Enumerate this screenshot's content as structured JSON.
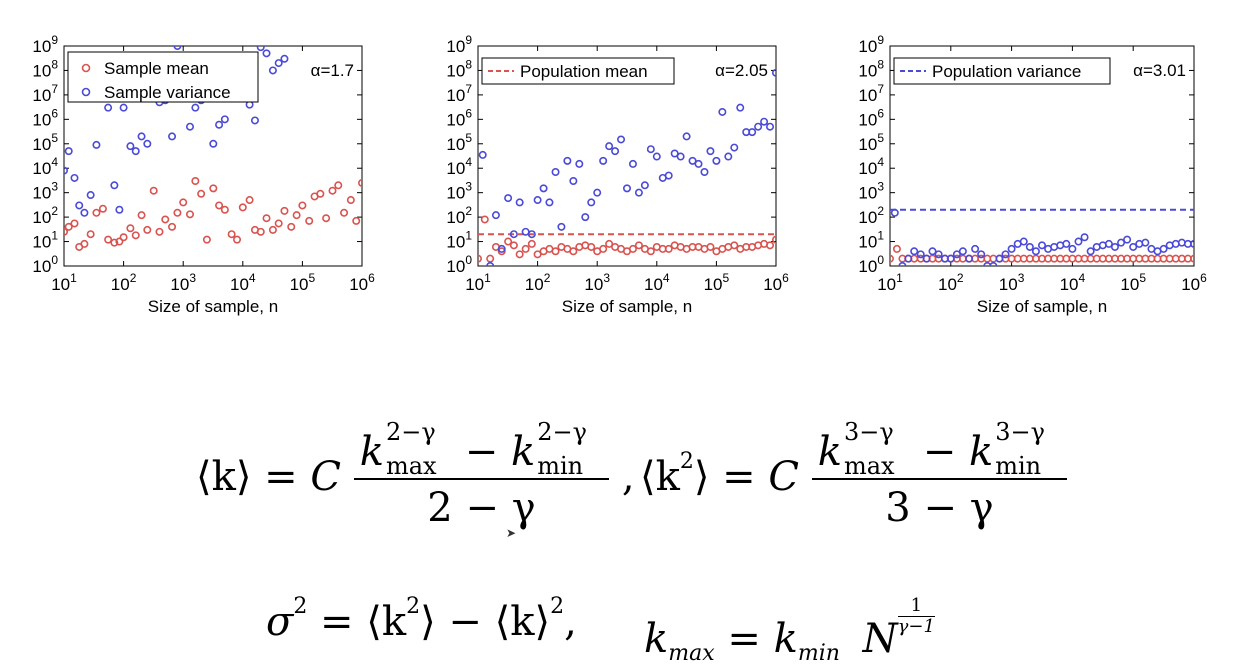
{
  "chart_data": [
    {
      "type": "scatter",
      "xlabel": "Size of sample, n",
      "xscale": "log",
      "yscale": "log",
      "xlim": [
        10,
        1000000
      ],
      "ylim": [
        1,
        1000000000
      ],
      "x_ticks": [
        "10^1",
        "10^2",
        "10^3",
        "10^4",
        "10^5",
        "10^6"
      ],
      "y_ticks": [
        "10^0",
        "10^1",
        "10^2",
        "10^3",
        "10^4",
        "10^5",
        "10^6",
        "10^7",
        "10^8",
        "10^9"
      ],
      "annotation": "α=1.7",
      "legend_position": "top-left",
      "series": [
        {
          "name": "Sample mean",
          "color": "#d9534f",
          "marker": "circle",
          "x": [
            10,
            12,
            15,
            18,
            22,
            28,
            35,
            45,
            55,
            70,
            85,
            100,
            130,
            160,
            200,
            250,
            320,
            400,
            500,
            650,
            800,
            1000,
            1300,
            1600,
            2000,
            2500,
            3200,
            4000,
            5000,
            6500,
            8000,
            10000,
            13000,
            16000,
            20000,
            25000,
            32000,
            40000,
            50000,
            65000,
            80000,
            100000,
            130000,
            160000,
            200000,
            250000,
            320000,
            400000,
            500000,
            650000,
            800000,
            1000000
          ],
          "y": [
            25,
            40,
            55,
            6,
            8,
            20,
            150,
            220,
            12,
            9,
            10,
            15,
            35,
            18,
            120,
            30,
            1200,
            25,
            80,
            40,
            150,
            400,
            130,
            3000,
            900,
            12,
            1500,
            300,
            200,
            20,
            12,
            250,
            500,
            30,
            25,
            90,
            30,
            55,
            180,
            40,
            120,
            300,
            70,
            700,
            900,
            90,
            1200,
            2000,
            150,
            500,
            70,
            2500
          ]
        },
        {
          "name": "Sample variance",
          "color": "#4a4ad9",
          "marker": "circle",
          "x": [
            10,
            12,
            15,
            18,
            22,
            28,
            35,
            45,
            55,
            70,
            85,
            100,
            130,
            160,
            200,
            250,
            320,
            400,
            500,
            650,
            800,
            1000,
            1300,
            1600,
            2000,
            2500,
            3200,
            4000,
            5000,
            6500,
            8000,
            10000,
            13000,
            16000,
            20000,
            25000,
            32000,
            40000,
            50000
          ],
          "y": [
            8000,
            50000,
            4000,
            300,
            150,
            800,
            90000,
            30000000,
            3000000,
            2000,
            200,
            3000000,
            80000,
            50000,
            200000,
            100000,
            8000000,
            5000000,
            6000000,
            200000,
            1000000000,
            50000000,
            500000,
            3000000,
            6000000,
            80000000,
            100000,
            600000,
            1000000,
            9000000,
            90000000,
            10000000,
            4000000,
            900000,
            900000000,
            500000000,
            100000000,
            200000000,
            300000000
          ]
        }
      ]
    },
    {
      "type": "scatter",
      "xlabel": "Size of sample, n",
      "xscale": "log",
      "yscale": "log",
      "xlim": [
        10,
        1000000
      ],
      "ylim": [
        1,
        1000000000
      ],
      "x_ticks": [
        "10^1",
        "10^2",
        "10^3",
        "10^4",
        "10^5",
        "10^6"
      ],
      "y_ticks": [
        "10^0",
        "10^1",
        "10^2",
        "10^3",
        "10^4",
        "10^5",
        "10^6",
        "10^7",
        "10^8",
        "10^9"
      ],
      "annotation": "α=2.05",
      "legend_position": "top-left",
      "reference_line": {
        "name": "Population mean",
        "value": 20,
        "color": "#d9534f",
        "style": "dashed"
      },
      "series": [
        {
          "name": "Sample mean",
          "color": "#d9534f",
          "marker": "circle",
          "x": [
            10,
            13,
            16,
            20,
            25,
            32,
            40,
            50,
            63,
            80,
            100,
            126,
            158,
            200,
            251,
            316,
            398,
            501,
            631,
            794,
            1000,
            1259,
            1585,
            1995,
            2512,
            3162,
            3981,
            5012,
            6310,
            7943,
            10000,
            12589,
            15849,
            19953,
            25119,
            31623,
            39811,
            50119,
            63096,
            79433,
            100000,
            125893,
            158489,
            199526,
            251189,
            316228,
            398107,
            501187,
            630957,
            794328,
            1000000
          ],
          "y": [
            2,
            80,
            2,
            6,
            4,
            10,
            7,
            3,
            5,
            8,
            3,
            4,
            5,
            4,
            6,
            5,
            4,
            6,
            7,
            6,
            4,
            5,
            8,
            6,
            5,
            4,
            5,
            7,
            5,
            4,
            6,
            5,
            5,
            7,
            6,
            5,
            6,
            6,
            5,
            6,
            4,
            5,
            6,
            7,
            5,
            6,
            6,
            7,
            8,
            7,
            12
          ]
        },
        {
          "name": "Sample variance",
          "color": "#4a4ad9",
          "marker": "circle",
          "x": [
            12,
            16,
            20,
            25,
            32,
            40,
            50,
            63,
            80,
            100,
            126,
            158,
            200,
            251,
            316,
            398,
            501,
            631,
            794,
            1000,
            1259,
            1585,
            1995,
            2512,
            3162,
            3981,
            5012,
            6310,
            7943,
            10000,
            12589,
            15849,
            19953,
            25119,
            31623,
            39811,
            50119,
            63096,
            79433,
            100000,
            125893,
            158489,
            199526,
            251189,
            316228,
            398107,
            501187,
            630957,
            794328,
            1000000
          ],
          "y": [
            35000,
            1,
            120,
            5,
            600,
            20,
            400,
            25,
            20,
            500,
            1500,
            400,
            7000,
            40,
            20000,
            3000,
            15000,
            100,
            400,
            1000,
            20000,
            80000,
            50000,
            150000,
            1500,
            15000,
            1000,
            2000,
            60000,
            30000,
            4000,
            5000,
            40000,
            30000,
            200000,
            20000,
            15000,
            7000,
            50000,
            20000,
            2000000,
            30000,
            70000,
            3000000,
            300000,
            300000,
            500000,
            800000,
            500000,
            80000000
          ]
        }
      ]
    },
    {
      "type": "scatter",
      "xlabel": "Size of sample, n",
      "xscale": "log",
      "yscale": "log",
      "xlim": [
        10,
        1000000
      ],
      "ylim": [
        1,
        1000000000
      ],
      "x_ticks": [
        "10^1",
        "10^2",
        "10^3",
        "10^4",
        "10^5",
        "10^6"
      ],
      "y_ticks": [
        "10^0",
        "10^1",
        "10^2",
        "10^3",
        "10^4",
        "10^5",
        "10^6",
        "10^7",
        "10^8",
        "10^9"
      ],
      "annotation": "α=3.01",
      "legend_position": "top-left",
      "reference_line": {
        "name": "Population variance",
        "value": 200,
        "color": "#4a4ad9",
        "style": "dashed"
      },
      "series": [
        {
          "name": "Sample mean",
          "color": "#d9534f",
          "marker": "circle",
          "x": [
            10,
            13,
            16,
            20,
            25,
            32,
            40,
            50,
            63,
            80,
            100,
            126,
            158,
            200,
            251,
            316,
            398,
            501,
            631,
            794,
            1000,
            1259,
            1585,
            1995,
            2512,
            3162,
            3981,
            5012,
            6310,
            7943,
            10000,
            12589,
            15849,
            19953,
            25119,
            31623,
            39811,
            50119,
            63096,
            79433,
            100000,
            125893,
            158489,
            199526,
            251189,
            316228,
            398107,
            501187,
            630957,
            794328,
            1000000
          ],
          "y": [
            2,
            5,
            2,
            2,
            2,
            2,
            2,
            2,
            2,
            2,
            2,
            2,
            2,
            2,
            2,
            2,
            2,
            2,
            2,
            2,
            2,
            2,
            2,
            2,
            2,
            2,
            2,
            2,
            2,
            2,
            2,
            2,
            2,
            2,
            2,
            2,
            2,
            2,
            2,
            2,
            2,
            2,
            2,
            2,
            2,
            2,
            2,
            2,
            2,
            2,
            2
          ]
        },
        {
          "name": "Sample variance",
          "color": "#4a4ad9",
          "marker": "circle",
          "x": [
            12,
            16,
            20,
            25,
            32,
            40,
            50,
            63,
            80,
            100,
            126,
            158,
            200,
            251,
            316,
            398,
            501,
            631,
            794,
            1000,
            1259,
            1585,
            1995,
            2512,
            3162,
            3981,
            5012,
            6310,
            7943,
            10000,
            12589,
            15849,
            19953,
            25119,
            31623,
            39811,
            50119,
            63096,
            79433,
            100000,
            125893,
            158489,
            199526,
            251189,
            316228,
            398107,
            501187,
            630957,
            794328,
            1000000
          ],
          "y": [
            150,
            1,
            2,
            4,
            3,
            2,
            4,
            3,
            2,
            2,
            3,
            4,
            2,
            5,
            3,
            1,
            1,
            2,
            3,
            5,
            8,
            10,
            6,
            4,
            7,
            5,
            6,
            7,
            8,
            5,
            10,
            15,
            4,
            6,
            7,
            8,
            6,
            9,
            12,
            6,
            8,
            9,
            5,
            4,
            5,
            7,
            8,
            9,
            8,
            8
          ]
        }
      ]
    }
  ],
  "formulas": {
    "mean": {
      "lhs": "⟨k⟩ = ",
      "coef": "C",
      "k": "k",
      "exp": "2−γ",
      "max": "max",
      "min": "min",
      "minus": " − ",
      "den": "2 − γ",
      "trail": ","
    },
    "second": {
      "lhs_open": "⟨k",
      "lhs_exp": "2",
      "lhs_close": "⟩ = ",
      "coef": "C",
      "k": "k",
      "exp": "3−γ",
      "max": "max",
      "min": "min",
      "minus": " − ",
      "den": "3 − γ"
    },
    "sigma": {
      "text1": "σ",
      "sq": "2",
      "text2": " = ⟨k",
      "sq2": "2",
      "text3": "⟩ − ⟨k⟩",
      "sq3": "2",
      "trail": ","
    },
    "kmax": {
      "k": "k",
      "max": "max",
      "eq": " = ",
      "min": "min",
      "N": "N",
      "exp_num": "1",
      "exp_den": "γ−1"
    }
  }
}
